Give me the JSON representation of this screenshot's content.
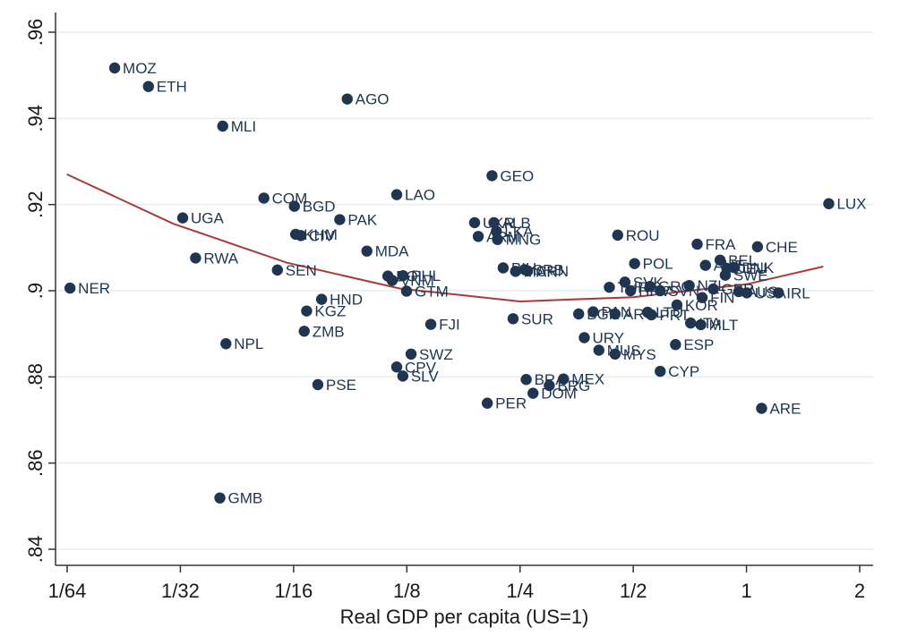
{
  "chart_data": {
    "type": "scatter",
    "title": "",
    "xlabel": "Real GDP per capita (US=1)",
    "ylabel": "",
    "x_scale": "log2",
    "xlim": [
      0.0156,
      2.0
    ],
    "ylim": [
      0.84,
      0.96
    ],
    "x_ticks": [
      {
        "value": 0.015625,
        "label": "1/64"
      },
      {
        "value": 0.03125,
        "label": "1/32"
      },
      {
        "value": 0.0625,
        "label": "1/16"
      },
      {
        "value": 0.125,
        "label": "1/8"
      },
      {
        "value": 0.25,
        "label": "1/4"
      },
      {
        "value": 0.5,
        "label": "1/2"
      },
      {
        "value": 1,
        "label": "1"
      },
      {
        "value": 2,
        "label": "2"
      }
    ],
    "y_ticks": [
      {
        "value": 0.84,
        "label": ".84"
      },
      {
        "value": 0.86,
        "label": ".86"
      },
      {
        "value": 0.88,
        "label": ".88"
      },
      {
        "value": 0.9,
        "label": ".9"
      },
      {
        "value": 0.92,
        "label": ".92"
      },
      {
        "value": 0.94,
        "label": ".94"
      },
      {
        "value": 0.96,
        "label": ".96"
      }
    ],
    "grid": "horizontal",
    "colors": {
      "points": "#1f3550",
      "fit": "#a83a3a",
      "grid": "#e6edf0",
      "axis": "#333333"
    },
    "fit_curve": {
      "name": "",
      "x": [
        0.0156,
        0.03,
        0.06,
        0.12,
        0.25,
        0.5,
        1.0,
        1.6
      ],
      "y": [
        0.927,
        0.9155,
        0.9065,
        0.9005,
        0.8975,
        0.8985,
        0.9015,
        0.9056
      ]
    },
    "points": [
      {
        "label": "MOZ",
        "x": 0.0209,
        "y": 0.9517
      },
      {
        "label": "ETH",
        "x": 0.0257,
        "y": 0.9474
      },
      {
        "label": "MLI",
        "x": 0.0405,
        "y": 0.9382
      },
      {
        "label": "AGO",
        "x": 0.0868,
        "y": 0.9445
      },
      {
        "label": "COM",
        "x": 0.0521,
        "y": 0.9215
      },
      {
        "label": "BGD",
        "x": 0.0628,
        "y": 0.9196
      },
      {
        "label": "UGA",
        "x": 0.0317,
        "y": 0.9169
      },
      {
        "label": "PAK",
        "x": 0.0829,
        "y": 0.9165
      },
      {
        "label": "LAO",
        "x": 0.1175,
        "y": 0.9223
      },
      {
        "label": "GEO",
        "x": 0.2106,
        "y": 0.9267
      },
      {
        "label": "LUX",
        "x": 1.655,
        "y": 0.9202
      },
      {
        "label": "KHM",
        "x": 0.0633,
        "y": 0.9131
      },
      {
        "label": "CIV",
        "x": 0.0653,
        "y": 0.9128
      },
      {
        "label": "UKR",
        "x": 0.1893,
        "y": 0.9158
      },
      {
        "label": "ALB",
        "x": 0.2131,
        "y": 0.9158
      },
      {
        "label": "ARM",
        "x": 0.1936,
        "y": 0.9126
      },
      {
        "label": "LKA",
        "x": 0.2163,
        "y": 0.9138
      },
      {
        "label": "MNG",
        "x": 0.2178,
        "y": 0.9119
      },
      {
        "label": "ROU",
        "x": 0.4546,
        "y": 0.9129
      },
      {
        "label": "FRA",
        "x": 0.7395,
        "y": 0.9108
      },
      {
        "label": "CHE",
        "x": 1.07,
        "y": 0.9102
      },
      {
        "label": "RWA",
        "x": 0.0343,
        "y": 0.9076
      },
      {
        "label": "MDA",
        "x": 0.0979,
        "y": 0.9092
      },
      {
        "label": "POL",
        "x": 0.5041,
        "y": 0.9063
      },
      {
        "label": "BEL",
        "x": 0.8507,
        "y": 0.9071
      },
      {
        "label": "DEU",
        "x": 0.8867,
        "y": 0.9052
      },
      {
        "label": "DNK",
        "x": 0.9253,
        "y": 0.9054
      },
      {
        "label": "AUT",
        "x": 0.778,
        "y": 0.9059
      },
      {
        "label": "SWE",
        "x": 0.8784,
        "y": 0.9036
      },
      {
        "label": "NER",
        "x": 0.0159,
        "y": 0.9006
      },
      {
        "label": "SEN",
        "x": 0.0566,
        "y": 0.9048
      },
      {
        "label": "BOL",
        "x": 0.1113,
        "y": 0.9034
      },
      {
        "label": "PHL",
        "x": 0.1221,
        "y": 0.9035
      },
      {
        "label": "VNM",
        "x": 0.1143,
        "y": 0.9024
      },
      {
        "label": "GTM",
        "x": 0.1248,
        "y": 0.8999
      },
      {
        "label": "BIH",
        "x": 0.2255,
        "y": 0.9053
      },
      {
        "label": "SRB",
        "x": 0.2571,
        "y": 0.9049
      },
      {
        "label": "MAR",
        "x": 0.2433,
        "y": 0.9045
      },
      {
        "label": "CHN",
        "x": 0.2619,
        "y": 0.9046
      },
      {
        "label": "HND",
        "x": 0.0742,
        "y": 0.898
      },
      {
        "label": "TUR",
        "x": 0.4319,
        "y": 0.9008
      },
      {
        "label": "SVK",
        "x": 0.4752,
        "y": 0.902
      },
      {
        "label": "HRV",
        "x": 0.4918,
        "y": 0.9
      },
      {
        "label": "GRC",
        "x": 0.5541,
        "y": 0.901
      },
      {
        "label": "SVN",
        "x": 0.5897,
        "y": 0.9
      },
      {
        "label": "KOR",
        "x": 0.6533,
        "y": 0.8967
      },
      {
        "label": "NZL",
        "x": 0.7043,
        "y": 0.9012
      },
      {
        "label": "FIN",
        "x": 0.7624,
        "y": 0.8984
      },
      {
        "label": "GBR",
        "x": 0.8163,
        "y": 0.9004
      },
      {
        "label": "AUS",
        "x": 0.9536,
        "y": 0.8998
      },
      {
        "label": "USA",
        "x": 1.002,
        "y": 0.8995
      },
      {
        "label": "IRL",
        "x": 1.216,
        "y": 0.8995
      },
      {
        "label": "KGZ",
        "x": 0.0677,
        "y": 0.8953
      },
      {
        "label": "ZMB",
        "x": 0.0667,
        "y": 0.8906
      },
      {
        "label": "FJI",
        "x": 0.1448,
        "y": 0.8922
      },
      {
        "label": "SUR",
        "x": 0.2396,
        "y": 0.8935
      },
      {
        "label": "BGR",
        "x": 0.358,
        "y": 0.8946
      },
      {
        "label": "PAN",
        "x": 0.3912,
        "y": 0.8951
      },
      {
        "label": "ARG",
        "x": 0.4474,
        "y": 0.8946
      },
      {
        "label": "LTU",
        "x": 0.5459,
        "y": 0.895
      },
      {
        "label": "PRT",
        "x": 0.5588,
        "y": 0.8944
      },
      {
        "label": "ITA",
        "x": 0.7104,
        "y": 0.8925
      },
      {
        "label": "MLT",
        "x": 0.7561,
        "y": 0.8921
      },
      {
        "label": "NPL",
        "x": 0.0413,
        "y": 0.8877
      },
      {
        "label": "URY",
        "x": 0.3705,
        "y": 0.8891
      },
      {
        "label": "MUS",
        "x": 0.4051,
        "y": 0.8862
      },
      {
        "label": "MYS",
        "x": 0.4474,
        "y": 0.8853
      },
      {
        "label": "ESP",
        "x": 0.6477,
        "y": 0.8875
      },
      {
        "label": "SWZ",
        "x": 0.1283,
        "y": 0.8853
      },
      {
        "label": "CPV",
        "x": 0.1175,
        "y": 0.8823
      },
      {
        "label": "SLV",
        "x": 0.122,
        "y": 0.8802
      },
      {
        "label": "CYP",
        "x": 0.5898,
        "y": 0.8813
      },
      {
        "label": "BRA",
        "x": 0.2596,
        "y": 0.8794
      },
      {
        "label": "MEX",
        "x": 0.3263,
        "y": 0.8795
      },
      {
        "label": "DOM",
        "x": 0.2707,
        "y": 0.8762
      },
      {
        "label": "BRG",
        "x": 0.299,
        "y": 0.878
      },
      {
        "label": "PSE",
        "x": 0.0725,
        "y": 0.8782
      },
      {
        "label": "PER",
        "x": 0.2046,
        "y": 0.8739
      },
      {
        "label": "ARE",
        "x": 1.097,
        "y": 0.8727
      },
      {
        "label": "GMB",
        "x": 0.0398,
        "y": 0.8519
      }
    ]
  }
}
